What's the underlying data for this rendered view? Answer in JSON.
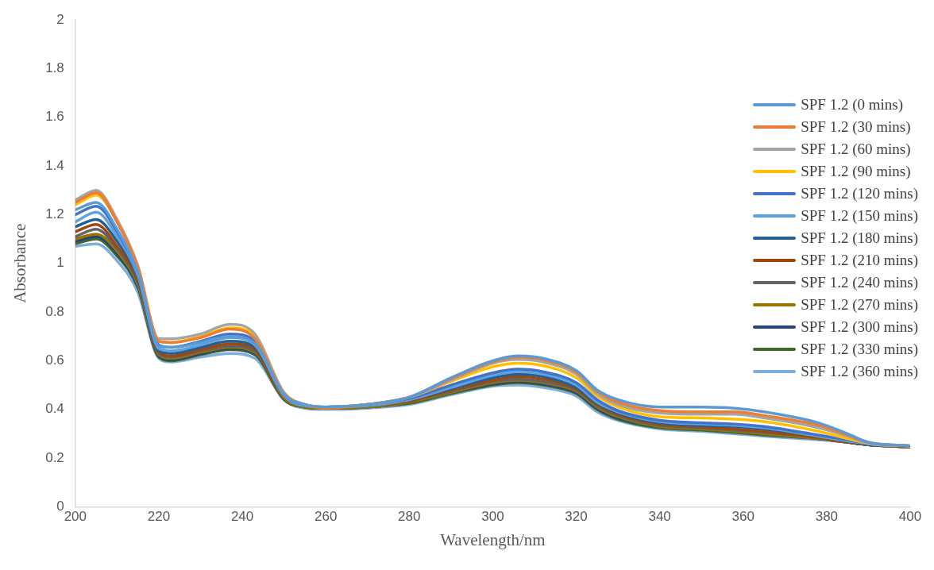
{
  "chart_data": {
    "type": "line",
    "xlabel": "Wavelength/nm",
    "ylabel": "Absorbance",
    "x": [
      200,
      205,
      210,
      215,
      220,
      223,
      230,
      237,
      243,
      250,
      255,
      260,
      270,
      280,
      290,
      300,
      306,
      312,
      320,
      325,
      330,
      340,
      350,
      358,
      365,
      378,
      385,
      390,
      400
    ],
    "xlim": [
      200,
      400
    ],
    "xticks": [
      200,
      220,
      240,
      260,
      280,
      300,
      320,
      340,
      360,
      380,
      400
    ],
    "ylim": [
      0,
      2
    ],
    "yticks": [
      0,
      0.2,
      0.4,
      0.6,
      0.8,
      1,
      1.2,
      1.4,
      1.6,
      1.8,
      2
    ],
    "grid": false,
    "legend": "right",
    "marker": "none",
    "line_style": "solid",
    "series": [
      {
        "name": "SPF 1.2 (0 mins)",
        "color": "#5b9bd5",
        "values": [
          1.22,
          1.25,
          1.14,
          0.96,
          0.66,
          0.655,
          0.675,
          0.7,
          0.67,
          0.46,
          0.42,
          0.41,
          0.42,
          0.45,
          0.53,
          0.6,
          0.62,
          0.61,
          0.56,
          0.48,
          0.44,
          0.41,
          0.41,
          0.405,
          0.39,
          0.345,
          0.3,
          0.265,
          0.25
        ]
      },
      {
        "name": "SPF 1.2 (30 mins)",
        "color": "#ed7d31",
        "values": [
          1.25,
          1.29,
          1.17,
          0.98,
          0.68,
          0.675,
          0.695,
          0.73,
          0.69,
          0.465,
          0.42,
          0.405,
          0.42,
          0.45,
          0.525,
          0.595,
          0.615,
          0.605,
          0.555,
          0.475,
          0.43,
          0.395,
          0.39,
          0.39,
          0.375,
          0.335,
          0.295,
          0.265,
          0.25
        ]
      },
      {
        "name": "SPF 1.2 (60 mins)",
        "color": "#a5a5a5",
        "values": [
          1.26,
          1.3,
          1.18,
          0.99,
          0.69,
          0.69,
          0.71,
          0.75,
          0.71,
          0.47,
          0.42,
          0.41,
          0.42,
          0.45,
          0.52,
          0.59,
          0.605,
          0.595,
          0.545,
          0.465,
          0.42,
          0.385,
          0.38,
          0.38,
          0.365,
          0.325,
          0.29,
          0.26,
          0.25
        ]
      },
      {
        "name": "SPF 1.2 (90 mins)",
        "color": "#ffc000",
        "values": [
          1.24,
          1.28,
          1.17,
          0.98,
          0.68,
          0.675,
          0.7,
          0.735,
          0.7,
          0.465,
          0.42,
          0.41,
          0.42,
          0.45,
          0.515,
          0.575,
          0.59,
          0.58,
          0.53,
          0.455,
          0.41,
          0.37,
          0.365,
          0.36,
          0.35,
          0.31,
          0.28,
          0.26,
          0.25
        ]
      },
      {
        "name": "SPF 1.2 (120 mins)",
        "color": "#4472c4",
        "values": [
          1.2,
          1.235,
          1.13,
          0.96,
          0.665,
          0.655,
          0.68,
          0.71,
          0.68,
          0.46,
          0.42,
          0.41,
          0.42,
          0.445,
          0.5,
          0.55,
          0.565,
          0.555,
          0.51,
          0.44,
          0.395,
          0.355,
          0.345,
          0.34,
          0.33,
          0.295,
          0.275,
          0.26,
          0.25
        ]
      },
      {
        "name": "SPF 1.2 (150 mins)",
        "color": "#5ea2e0",
        "values": [
          1.17,
          1.21,
          1.11,
          0.95,
          0.65,
          0.64,
          0.665,
          0.695,
          0.665,
          0.455,
          0.415,
          0.41,
          0.415,
          0.44,
          0.49,
          0.54,
          0.555,
          0.545,
          0.5,
          0.43,
          0.39,
          0.35,
          0.34,
          0.335,
          0.325,
          0.29,
          0.27,
          0.26,
          0.25
        ]
      },
      {
        "name": "SPF 1.2 (180 mins)",
        "color": "#255e91",
        "values": [
          1.15,
          1.18,
          1.09,
          0.94,
          0.64,
          0.63,
          0.655,
          0.68,
          0.655,
          0.455,
          0.415,
          0.41,
          0.415,
          0.44,
          0.485,
          0.53,
          0.545,
          0.535,
          0.49,
          0.425,
          0.385,
          0.345,
          0.335,
          0.33,
          0.32,
          0.29,
          0.27,
          0.255,
          0.25
        ]
      },
      {
        "name": "SPF 1.2 (210 mins)",
        "color": "#9e480e",
        "values": [
          1.13,
          1.16,
          1.07,
          0.93,
          0.635,
          0.62,
          0.645,
          0.67,
          0.645,
          0.45,
          0.415,
          0.41,
          0.415,
          0.435,
          0.48,
          0.52,
          0.535,
          0.525,
          0.485,
          0.42,
          0.38,
          0.34,
          0.33,
          0.32,
          0.31,
          0.285,
          0.265,
          0.255,
          0.245
        ]
      },
      {
        "name": "SPF 1.2 (240 mins)",
        "color": "#636363",
        "values": [
          1.11,
          1.14,
          1.06,
          0.92,
          0.63,
          0.615,
          0.64,
          0.66,
          0.64,
          0.45,
          0.415,
          0.41,
          0.415,
          0.435,
          0.475,
          0.515,
          0.525,
          0.515,
          0.48,
          0.415,
          0.375,
          0.335,
          0.325,
          0.315,
          0.305,
          0.285,
          0.265,
          0.255,
          0.245
        ]
      },
      {
        "name": "SPF 1.2 (270 mins)",
        "color": "#997300",
        "values": [
          1.1,
          1.12,
          1.05,
          0.91,
          0.625,
          0.61,
          0.635,
          0.655,
          0.635,
          0.445,
          0.41,
          0.405,
          0.41,
          0.43,
          0.47,
          0.51,
          0.52,
          0.51,
          0.475,
          0.41,
          0.37,
          0.33,
          0.32,
          0.31,
          0.3,
          0.28,
          0.265,
          0.255,
          0.245
        ]
      },
      {
        "name": "SPF 1.2 (300 mins)",
        "color": "#264478",
        "values": [
          1.09,
          1.11,
          1.04,
          0.905,
          0.62,
          0.605,
          0.63,
          0.65,
          0.63,
          0.445,
          0.41,
          0.405,
          0.41,
          0.43,
          0.47,
          0.505,
          0.515,
          0.505,
          0.47,
          0.405,
          0.365,
          0.33,
          0.32,
          0.31,
          0.3,
          0.28,
          0.265,
          0.255,
          0.245
        ]
      },
      {
        "name": "SPF 1.2 (330 mins)",
        "color": "#43682b",
        "values": [
          1.08,
          1.1,
          1.03,
          0.9,
          0.615,
          0.6,
          0.625,
          0.645,
          0.625,
          0.44,
          0.41,
          0.405,
          0.41,
          0.425,
          0.465,
          0.5,
          0.51,
          0.5,
          0.465,
          0.4,
          0.36,
          0.325,
          0.315,
          0.305,
          0.295,
          0.28,
          0.265,
          0.255,
          0.245
        ]
      },
      {
        "name": "SPF 1.2 (360 mins)",
        "color": "#7cafdd",
        "values": [
          1.07,
          1.08,
          1.01,
          0.88,
          0.61,
          0.595,
          0.615,
          0.63,
          0.61,
          0.44,
          0.405,
          0.4,
          0.405,
          0.42,
          0.46,
          0.495,
          0.5,
          0.49,
          0.455,
          0.39,
          0.355,
          0.32,
          0.31,
          0.3,
          0.29,
          0.275,
          0.265,
          0.255,
          0.25
        ]
      }
    ]
  }
}
